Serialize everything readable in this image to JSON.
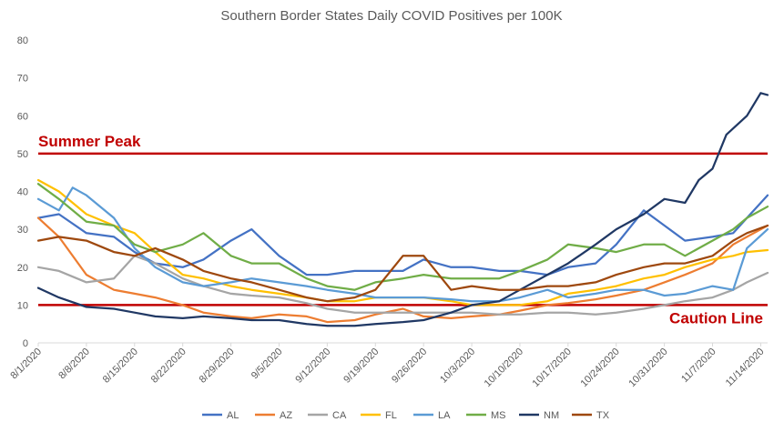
{
  "chart_data": {
    "type": "line",
    "title": "Southern Border States Daily COVID Positives per 100K",
    "xlabel": "",
    "ylabel": "",
    "ylim": [
      0,
      80
    ],
    "yticks": [
      "0",
      "10",
      "20",
      "30",
      "40",
      "50",
      "60",
      "70",
      "80"
    ],
    "xdomain": [
      "2020-08-01",
      "2020-11-15"
    ],
    "xticks": [
      {
        "label": "8/1/2020",
        "date": "2020-08-01"
      },
      {
        "label": "8/8/2020",
        "date": "2020-08-08"
      },
      {
        "label": "8/15/2020",
        "date": "2020-08-15"
      },
      {
        "label": "8/22/2020",
        "date": "2020-08-22"
      },
      {
        "label": "8/29/2020",
        "date": "2020-08-29"
      },
      {
        "label": "9/5/2020",
        "date": "2020-09-05"
      },
      {
        "label": "9/12/2020",
        "date": "2020-09-12"
      },
      {
        "label": "9/19/2020",
        "date": "2020-09-19"
      },
      {
        "label": "9/26/2020",
        "date": "2020-09-26"
      },
      {
        "label": "10/3/2020",
        "date": "2020-10-03"
      },
      {
        "label": "10/10/2020",
        "date": "2020-10-10"
      },
      {
        "label": "10/17/2020",
        "date": "2020-10-17"
      },
      {
        "label": "10/24/2020",
        "date": "2020-10-24"
      },
      {
        "label": "10/31/2020",
        "date": "2020-10-31"
      },
      {
        "label": "11/7/2020",
        "date": "2020-11-07"
      },
      {
        "label": "11/14/2020",
        "date": "2020-11-14"
      }
    ],
    "grid": false,
    "legend_position": "bottom",
    "reference_lines": [
      {
        "label": "Summer Peak",
        "value": 50,
        "color": "#c00000"
      },
      {
        "label": "Caution Line",
        "value": 10,
        "color": "#c00000"
      }
    ],
    "series": [
      {
        "name": "AL",
        "color": "#4472c4",
        "points": [
          [
            "2020-08-01",
            33
          ],
          [
            "2020-08-04",
            34
          ],
          [
            "2020-08-08",
            29
          ],
          [
            "2020-08-12",
            28
          ],
          [
            "2020-08-15",
            24
          ],
          [
            "2020-08-18",
            21
          ],
          [
            "2020-08-22",
            20
          ],
          [
            "2020-08-25",
            22
          ],
          [
            "2020-08-29",
            27
          ],
          [
            "2020-09-01",
            30
          ],
          [
            "2020-09-05",
            23
          ],
          [
            "2020-09-09",
            18
          ],
          [
            "2020-09-12",
            18
          ],
          [
            "2020-09-16",
            19
          ],
          [
            "2020-09-19",
            19
          ],
          [
            "2020-09-23",
            19
          ],
          [
            "2020-09-26",
            22
          ],
          [
            "2020-09-30",
            20
          ],
          [
            "2020-10-03",
            20
          ],
          [
            "2020-10-07",
            19
          ],
          [
            "2020-10-10",
            19
          ],
          [
            "2020-10-14",
            18
          ],
          [
            "2020-10-17",
            20
          ],
          [
            "2020-10-21",
            21
          ],
          [
            "2020-10-24",
            26
          ],
          [
            "2020-10-28",
            35
          ],
          [
            "2020-10-31",
            31
          ],
          [
            "2020-11-03",
            27
          ],
          [
            "2020-11-07",
            28
          ],
          [
            "2020-11-10",
            29
          ],
          [
            "2020-11-12",
            33
          ],
          [
            "2020-11-15",
            39
          ]
        ]
      },
      {
        "name": "AZ",
        "color": "#ed7d31",
        "points": [
          [
            "2020-08-01",
            33
          ],
          [
            "2020-08-04",
            28
          ],
          [
            "2020-08-08",
            18
          ],
          [
            "2020-08-12",
            14
          ],
          [
            "2020-08-15",
            13
          ],
          [
            "2020-08-18",
            12
          ],
          [
            "2020-08-22",
            10
          ],
          [
            "2020-08-25",
            8
          ],
          [
            "2020-08-29",
            7
          ],
          [
            "2020-09-01",
            6.5
          ],
          [
            "2020-09-05",
            7.5
          ],
          [
            "2020-09-09",
            7
          ],
          [
            "2020-09-12",
            5.5
          ],
          [
            "2020-09-16",
            6
          ],
          [
            "2020-09-19",
            7.5
          ],
          [
            "2020-09-23",
            9
          ],
          [
            "2020-09-26",
            7
          ],
          [
            "2020-09-30",
            6.5
          ],
          [
            "2020-10-03",
            7
          ],
          [
            "2020-10-07",
            7.5
          ],
          [
            "2020-10-10",
            8.5
          ],
          [
            "2020-10-14",
            10
          ],
          [
            "2020-10-17",
            10.5
          ],
          [
            "2020-10-21",
            11.5
          ],
          [
            "2020-10-24",
            12.5
          ],
          [
            "2020-10-28",
            14
          ],
          [
            "2020-10-31",
            16
          ],
          [
            "2020-11-03",
            18
          ],
          [
            "2020-11-07",
            21
          ],
          [
            "2020-11-10",
            26
          ],
          [
            "2020-11-12",
            28
          ],
          [
            "2020-11-15",
            31
          ]
        ]
      },
      {
        "name": "CA",
        "color": "#a5a5a5",
        "points": [
          [
            "2020-08-01",
            20
          ],
          [
            "2020-08-04",
            19
          ],
          [
            "2020-08-08",
            16
          ],
          [
            "2020-08-12",
            17
          ],
          [
            "2020-08-15",
            23
          ],
          [
            "2020-08-18",
            21
          ],
          [
            "2020-08-22",
            17
          ],
          [
            "2020-08-25",
            15
          ],
          [
            "2020-08-29",
            13
          ],
          [
            "2020-09-01",
            12.5
          ],
          [
            "2020-09-05",
            12
          ],
          [
            "2020-09-09",
            10.5
          ],
          [
            "2020-09-12",
            9
          ],
          [
            "2020-09-16",
            8
          ],
          [
            "2020-09-19",
            8
          ],
          [
            "2020-09-23",
            8
          ],
          [
            "2020-09-26",
            8
          ],
          [
            "2020-09-30",
            8
          ],
          [
            "2020-10-03",
            8
          ],
          [
            "2020-10-07",
            7.5
          ],
          [
            "2020-10-10",
            7.5
          ],
          [
            "2020-10-14",
            8
          ],
          [
            "2020-10-17",
            8
          ],
          [
            "2020-10-21",
            7.5
          ],
          [
            "2020-10-24",
            8
          ],
          [
            "2020-10-28",
            9
          ],
          [
            "2020-10-31",
            10
          ],
          [
            "2020-11-03",
            11
          ],
          [
            "2020-11-07",
            12
          ],
          [
            "2020-11-10",
            14
          ],
          [
            "2020-11-12",
            16
          ],
          [
            "2020-11-15",
            18.5
          ]
        ]
      },
      {
        "name": "FL",
        "color": "#ffc000",
        "points": [
          [
            "2020-08-01",
            43
          ],
          [
            "2020-08-04",
            40
          ],
          [
            "2020-08-08",
            34
          ],
          [
            "2020-08-12",
            31
          ],
          [
            "2020-08-15",
            29
          ],
          [
            "2020-08-18",
            24
          ],
          [
            "2020-08-22",
            18
          ],
          [
            "2020-08-25",
            17
          ],
          [
            "2020-08-29",
            15
          ],
          [
            "2020-09-01",
            14
          ],
          [
            "2020-09-05",
            13
          ],
          [
            "2020-09-09",
            12
          ],
          [
            "2020-09-12",
            11
          ],
          [
            "2020-09-16",
            11
          ],
          [
            "2020-09-19",
            12
          ],
          [
            "2020-09-23",
            12
          ],
          [
            "2020-09-26",
            12
          ],
          [
            "2020-09-30",
            11
          ],
          [
            "2020-10-03",
            10
          ],
          [
            "2020-10-07",
            10
          ],
          [
            "2020-10-10",
            10
          ],
          [
            "2020-10-14",
            11
          ],
          [
            "2020-10-17",
            13
          ],
          [
            "2020-10-21",
            14
          ],
          [
            "2020-10-24",
            15
          ],
          [
            "2020-10-28",
            17
          ],
          [
            "2020-10-31",
            18
          ],
          [
            "2020-11-03",
            20
          ],
          [
            "2020-11-07",
            22
          ],
          [
            "2020-11-10",
            23
          ],
          [
            "2020-11-12",
            24
          ],
          [
            "2020-11-15",
            24.5
          ]
        ]
      },
      {
        "name": "LA",
        "color": "#5b9bd5",
        "points": [
          [
            "2020-08-01",
            38
          ],
          [
            "2020-08-04",
            35
          ],
          [
            "2020-08-06",
            41
          ],
          [
            "2020-08-08",
            39
          ],
          [
            "2020-08-12",
            33
          ],
          [
            "2020-08-15",
            25
          ],
          [
            "2020-08-18",
            20
          ],
          [
            "2020-08-22",
            16
          ],
          [
            "2020-08-25",
            15
          ],
          [
            "2020-08-29",
            16
          ],
          [
            "2020-09-01",
            17
          ],
          [
            "2020-09-05",
            16
          ],
          [
            "2020-09-09",
            15
          ],
          [
            "2020-09-12",
            14
          ],
          [
            "2020-09-16",
            13
          ],
          [
            "2020-09-19",
            12
          ],
          [
            "2020-09-23",
            12
          ],
          [
            "2020-09-26",
            12
          ],
          [
            "2020-09-30",
            11.5
          ],
          [
            "2020-10-03",
            11
          ],
          [
            "2020-10-07",
            11
          ],
          [
            "2020-10-10",
            12
          ],
          [
            "2020-10-14",
            14
          ],
          [
            "2020-10-17",
            12
          ],
          [
            "2020-10-21",
            13
          ],
          [
            "2020-10-24",
            14
          ],
          [
            "2020-10-28",
            14
          ],
          [
            "2020-10-31",
            12.5
          ],
          [
            "2020-11-03",
            13
          ],
          [
            "2020-11-07",
            15
          ],
          [
            "2020-11-10",
            14
          ],
          [
            "2020-11-12",
            25
          ],
          [
            "2020-11-15",
            30
          ]
        ]
      },
      {
        "name": "MS",
        "color": "#70ad47",
        "points": [
          [
            "2020-08-01",
            42
          ],
          [
            "2020-08-04",
            38
          ],
          [
            "2020-08-08",
            32
          ],
          [
            "2020-08-12",
            31
          ],
          [
            "2020-08-15",
            26
          ],
          [
            "2020-08-18",
            24
          ],
          [
            "2020-08-22",
            26
          ],
          [
            "2020-08-25",
            29
          ],
          [
            "2020-08-29",
            23
          ],
          [
            "2020-09-01",
            21
          ],
          [
            "2020-09-05",
            21
          ],
          [
            "2020-09-09",
            17
          ],
          [
            "2020-09-12",
            15
          ],
          [
            "2020-09-16",
            14
          ],
          [
            "2020-09-19",
            16
          ],
          [
            "2020-09-23",
            17
          ],
          [
            "2020-09-26",
            18
          ],
          [
            "2020-09-30",
            17
          ],
          [
            "2020-10-03",
            17
          ],
          [
            "2020-10-07",
            17
          ],
          [
            "2020-10-10",
            19
          ],
          [
            "2020-10-14",
            22
          ],
          [
            "2020-10-17",
            26
          ],
          [
            "2020-10-21",
            25
          ],
          [
            "2020-10-24",
            24
          ],
          [
            "2020-10-28",
            26
          ],
          [
            "2020-10-31",
            26
          ],
          [
            "2020-11-03",
            23
          ],
          [
            "2020-11-07",
            27
          ],
          [
            "2020-11-10",
            30
          ],
          [
            "2020-11-12",
            33
          ],
          [
            "2020-11-15",
            36
          ]
        ]
      },
      {
        "name": "NM",
        "color": "#203864",
        "points": [
          [
            "2020-08-01",
            14.5
          ],
          [
            "2020-08-04",
            12
          ],
          [
            "2020-08-08",
            9.5
          ],
          [
            "2020-08-12",
            9
          ],
          [
            "2020-08-15",
            8
          ],
          [
            "2020-08-18",
            7
          ],
          [
            "2020-08-22",
            6.5
          ],
          [
            "2020-08-25",
            7
          ],
          [
            "2020-08-29",
            6.5
          ],
          [
            "2020-09-01",
            6
          ],
          [
            "2020-09-05",
            6
          ],
          [
            "2020-09-09",
            5
          ],
          [
            "2020-09-12",
            4.5
          ],
          [
            "2020-09-16",
            4.5
          ],
          [
            "2020-09-19",
            5
          ],
          [
            "2020-09-23",
            5.5
          ],
          [
            "2020-09-26",
            6
          ],
          [
            "2020-09-30",
            8
          ],
          [
            "2020-10-03",
            10
          ],
          [
            "2020-10-07",
            11
          ],
          [
            "2020-10-10",
            14
          ],
          [
            "2020-10-14",
            18
          ],
          [
            "2020-10-17",
            21
          ],
          [
            "2020-10-21",
            26
          ],
          [
            "2020-10-24",
            30
          ],
          [
            "2020-10-28",
            34
          ],
          [
            "2020-10-31",
            38
          ],
          [
            "2020-11-03",
            37
          ],
          [
            "2020-11-05",
            43
          ],
          [
            "2020-11-07",
            46
          ],
          [
            "2020-11-09",
            55
          ],
          [
            "2020-11-12",
            60
          ],
          [
            "2020-11-14",
            66
          ],
          [
            "2020-11-15",
            65.5
          ]
        ]
      },
      {
        "name": "TX",
        "color": "#9e480e",
        "points": [
          [
            "2020-08-01",
            27
          ],
          [
            "2020-08-04",
            28
          ],
          [
            "2020-08-08",
            27
          ],
          [
            "2020-08-12",
            24
          ],
          [
            "2020-08-15",
            23
          ],
          [
            "2020-08-18",
            25
          ],
          [
            "2020-08-22",
            22
          ],
          [
            "2020-08-25",
            19
          ],
          [
            "2020-08-29",
            17
          ],
          [
            "2020-09-01",
            16
          ],
          [
            "2020-09-05",
            14
          ],
          [
            "2020-09-09",
            12
          ],
          [
            "2020-09-12",
            11
          ],
          [
            "2020-09-16",
            12
          ],
          [
            "2020-09-19",
            14
          ],
          [
            "2020-09-23",
            23
          ],
          [
            "2020-09-26",
            23
          ],
          [
            "2020-09-30",
            14
          ],
          [
            "2020-10-03",
            15
          ],
          [
            "2020-10-07",
            14
          ],
          [
            "2020-10-10",
            14
          ],
          [
            "2020-10-14",
            15
          ],
          [
            "2020-10-17",
            15
          ],
          [
            "2020-10-21",
            16
          ],
          [
            "2020-10-24",
            18
          ],
          [
            "2020-10-28",
            20
          ],
          [
            "2020-10-31",
            21
          ],
          [
            "2020-11-03",
            21
          ],
          [
            "2020-11-07",
            23
          ],
          [
            "2020-11-10",
            27
          ],
          [
            "2020-11-12",
            29
          ],
          [
            "2020-11-15",
            31
          ]
        ]
      }
    ]
  }
}
